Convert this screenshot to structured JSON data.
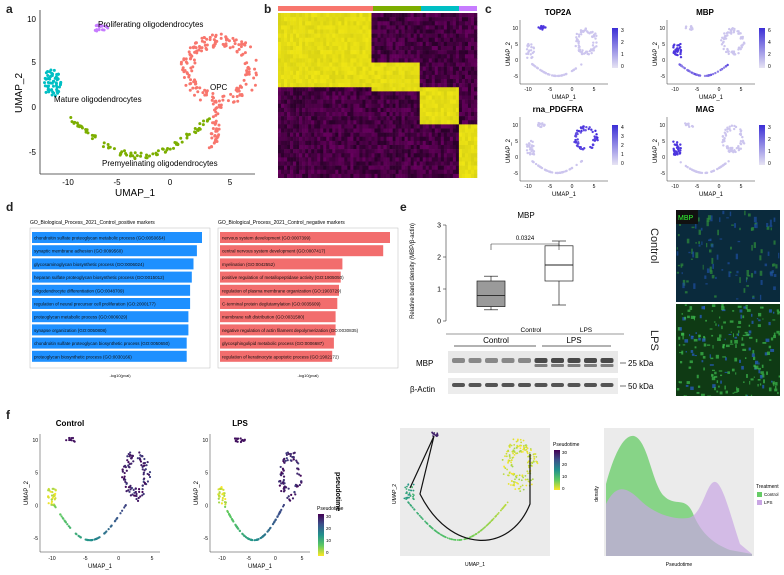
{
  "figure": {
    "panel_labels": [
      "a",
      "b",
      "c",
      "d",
      "e",
      "f"
    ]
  },
  "panel_a": {
    "xlabel": "UMAP_1",
    "ylabel": "UMAP_2",
    "x_ticks": [
      "-10",
      "-5",
      "0",
      "5"
    ],
    "y_ticks": [
      "-5",
      "0",
      "5",
      "10"
    ],
    "clusters": [
      {
        "name": "Proliferating oligodendrocytes",
        "color": "#c77cff"
      },
      {
        "name": "Mature oligodendrocytes",
        "color": "#00bfc4"
      },
      {
        "name": "OPC",
        "color": "#f8766d"
      },
      {
        "name": "Premyelinating oligodendrocytes",
        "color": "#7cae00"
      }
    ]
  },
  "panel_b": {
    "group_colors": [
      "#f8766d",
      "#7cae00",
      "#00bfc4",
      "#c77cff"
    ]
  },
  "panel_c": {
    "genes": [
      {
        "name": "TOP2A",
        "scale": [
          "3",
          "2",
          "1",
          "0"
        ]
      },
      {
        "name": "MBP",
        "scale": [
          "6",
          "4",
          "2",
          "0"
        ]
      },
      {
        "name": "rna_PDGFRA",
        "scale": [
          "4",
          "3",
          "2",
          "1",
          "0"
        ]
      },
      {
        "name": "MAG",
        "scale": [
          "3",
          "2",
          "1",
          "0"
        ]
      }
    ],
    "xlabel": "UMAP_1",
    "ylabel": "UMAP_2",
    "x_ticks": [
      "-10",
      "-5",
      "0",
      "5"
    ],
    "y_ticks": [
      "-5",
      "0",
      "5",
      "10"
    ]
  },
  "panel_d": {
    "positive": {
      "title": "GO_Biological_Process_2021_Control_positive markers",
      "xlabel": "-log10(pval)",
      "color": "#1e90ff",
      "terms": [
        {
          "label": "chondroitin sulfate proteoglycan metabolic process (GO:0050654)",
          "value": 1.0
        },
        {
          "label": "synaptic membrane adhesion (GO:0099560)",
          "value": 0.97
        },
        {
          "label": "glycosaminoglycan biosynthetic process (GO:0006024)",
          "value": 0.95
        },
        {
          "label": "heparan sulfate proteoglycan biosynthetic process (GO:0015012)",
          "value": 0.94
        },
        {
          "label": "oligodendrocyte differentiation (GO:0048709)",
          "value": 0.93
        },
        {
          "label": "regulation of neural precursor cell proliferation (GO:2000177)",
          "value": 0.93
        },
        {
          "label": "proteoglycan metabolic process (GO:0006029)",
          "value": 0.92
        },
        {
          "label": "synapse organization (GO:0050808)",
          "value": 0.92
        },
        {
          "label": "chondroitin sulfate proteoglycan biosynthetic process (GO:0050650)",
          "value": 0.91
        },
        {
          "label": "proteoglycan biosynthetic process (GO:0030166)",
          "value": 0.91
        }
      ]
    },
    "negative": {
      "title": "GO_Biological_Process_2021_Control_negative markers",
      "xlabel": "-log10(pval)",
      "color": "#f26d6d",
      "terms": [
        {
          "label": "nervous system development (GO:0007399)",
          "value": 1.0
        },
        {
          "label": "central nervous system development (GO:0007417)",
          "value": 0.96
        },
        {
          "label": "myelination (GO:0042552)",
          "value": 0.72
        },
        {
          "label": "positive regulation of metallopeptidase activity (GO:1905050)",
          "value": 0.71
        },
        {
          "label": "regulation of plasma membrane organization (GO:1903729)",
          "value": 0.7
        },
        {
          "label": "C-terminal protein deglutamylation (GO:0035609)",
          "value": 0.69
        },
        {
          "label": "membrane raft distribution (GO:0031580)",
          "value": 0.68
        },
        {
          "label": "negative regulation of actin filament depolymerization (GO:0030835)",
          "value": 0.68
        },
        {
          "label": "glycosphingolipid metabolic process (GO:0006687)",
          "value": 0.67
        },
        {
          "label": "regulation of keratinocyte apoptotic process (GO:1902172)",
          "value": 0.66
        }
      ]
    }
  },
  "panel_e": {
    "box_title": "MBP",
    "ylabel": "Relative band density (MBP/β-actin)",
    "y_ticks": [
      "0",
      "1",
      "2",
      "3"
    ],
    "groups": [
      "Control",
      "LPS"
    ],
    "pvalue": "0.0324",
    "box_stats": [
      {
        "group": "Control",
        "min": 0.35,
        "q1": 0.45,
        "median": 0.8,
        "q3": 1.25,
        "max": 1.4
      },
      {
        "group": "LPS",
        "min": 0.5,
        "q1": 1.25,
        "median": 1.75,
        "q3": 2.35,
        "max": 2.5
      }
    ],
    "blot_groups": [
      "Control",
      "LPS"
    ],
    "blot_rows": [
      "MBP",
      "β-Actin"
    ],
    "size_markers": [
      "25 kDa",
      "50 kDa"
    ],
    "image_labels": [
      "Control",
      "LPS"
    ],
    "mbp_stain_label": "MBP"
  },
  "panel_f": {
    "plot1_title": "Control",
    "plot2_title": "LPS",
    "xlabel": "UMAP_1",
    "ylabel": "UMAP_2",
    "x_ticks": [
      "-10",
      "-5",
      "0",
      "5"
    ],
    "y_ticks": [
      "-5",
      "0",
      "5",
      "10"
    ],
    "pseudotime_title": "Pseudotime",
    "pseudotime_scale": [
      "30",
      "20",
      "10",
      "0"
    ],
    "pseudotime_axis": "pseudotime",
    "traj_title": "Pseudotime",
    "traj_scale": [
      "30",
      "20",
      "10",
      "0"
    ],
    "density": {
      "xlabel": "Pseudotime",
      "ylabel": "density",
      "legend_title": "Treatment",
      "series": [
        {
          "name": "Control",
          "color": "#66cc66"
        },
        {
          "name": "LPS",
          "color": "#c9a6e4"
        }
      ]
    }
  }
}
